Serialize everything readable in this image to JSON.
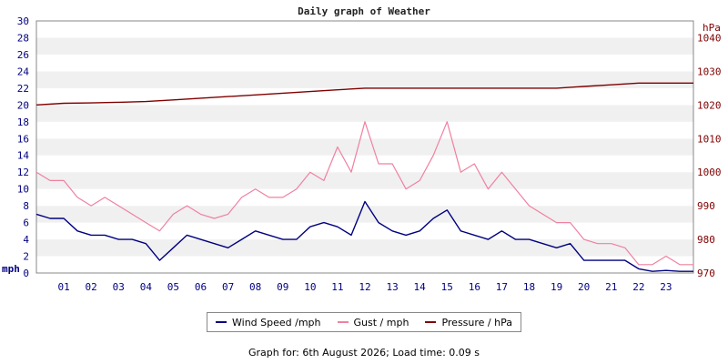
{
  "chart_data": {
    "type": "line",
    "title": "Daily graph of Weather",
    "y_left_unit": "mph",
    "y_right_unit": "hPa",
    "y_left_ticks": [
      0,
      2,
      4,
      6,
      8,
      10,
      12,
      14,
      16,
      18,
      20,
      22,
      24,
      26,
      28,
      30
    ],
    "y_right_ticks": [
      970,
      980,
      990,
      1000,
      1010,
      1020,
      1030,
      1040
    ],
    "ylim_left": [
      0,
      30
    ],
    "ylim_right": [
      970,
      1045
    ],
    "x_ticks": [
      "01",
      "02",
      "03",
      "04",
      "05",
      "06",
      "07",
      "08",
      "09",
      "10",
      "11",
      "12",
      "13",
      "14",
      "15",
      "16",
      "17",
      "18",
      "19",
      "20",
      "21",
      "22",
      "23"
    ],
    "xlim_hours": [
      0,
      24
    ],
    "grid": "horizontal alternating bands",
    "legend_position": "bottom",
    "series": [
      {
        "name": "Wind Speed /mph",
        "color": "#000080",
        "axis": "left",
        "x": [
          0,
          0.5,
          1,
          1.5,
          2,
          2.5,
          3,
          3.5,
          4,
          4.5,
          5,
          5.5,
          6,
          6.5,
          7,
          7.5,
          8,
          8.5,
          9,
          9.5,
          10,
          10.5,
          11,
          11.5,
          12,
          12.5,
          13,
          13.5,
          14,
          14.5,
          15,
          15.5,
          16,
          16.5,
          17,
          17.5,
          18,
          18.5,
          19,
          19.5,
          20,
          20.5,
          21,
          21.5,
          22,
          22.5,
          23,
          23.5,
          24
        ],
        "values": [
          7,
          6.5,
          6.5,
          5,
          4.5,
          4.5,
          4,
          4,
          3.5,
          1.5,
          3,
          4.5,
          4,
          3.5,
          3,
          4,
          5,
          4.5,
          4,
          4,
          5.5,
          6,
          5.5,
          4.5,
          8.5,
          6,
          5,
          4.5,
          5,
          6.5,
          7.5,
          5,
          4.5,
          4,
          5,
          4,
          4,
          3.5,
          3,
          3.5,
          1.5,
          1.5,
          1.5,
          1.5,
          0.5,
          0.2,
          0.3,
          0.2,
          0.2
        ]
      },
      {
        "name": "Gust / mph",
        "color": "#f080a0",
        "axis": "left",
        "x": [
          0,
          0.5,
          1,
          1.5,
          2,
          2.5,
          3,
          3.5,
          4,
          4.5,
          5,
          5.5,
          6,
          6.5,
          7,
          7.5,
          8,
          8.5,
          9,
          9.5,
          10,
          10.5,
          11,
          11.5,
          12,
          12.5,
          13,
          13.5,
          14,
          14.5,
          15,
          15.5,
          16,
          16.5,
          17,
          17.5,
          18,
          18.5,
          19,
          19.5,
          20,
          20.5,
          21,
          21.5,
          22,
          22.5,
          23,
          23.5,
          24
        ],
        "values": [
          12,
          11,
          11,
          9,
          8,
          9,
          8,
          7,
          6,
          5,
          7,
          8,
          7,
          6.5,
          7,
          9,
          10,
          9,
          9,
          10,
          12,
          11,
          15,
          12,
          18,
          13,
          13,
          10,
          11,
          14,
          18,
          12,
          13,
          10,
          12,
          10,
          8,
          7,
          6,
          6,
          4,
          3.5,
          3.5,
          3,
          1,
          1,
          2,
          1,
          1
        ]
      },
      {
        "name": "Pressure / hPa",
        "color": "#800000",
        "axis": "right",
        "x": [
          0,
          1,
          2,
          3,
          4,
          5,
          6,
          7,
          8,
          9,
          10,
          11,
          12,
          13,
          14,
          15,
          16,
          17,
          18,
          19,
          20,
          21,
          22,
          23,
          24
        ],
        "values": [
          1020,
          1020.5,
          1020.6,
          1020.8,
          1021,
          1021.5,
          1022,
          1022.5,
          1023,
          1023.5,
          1024,
          1024.5,
          1025,
          1025,
          1025,
          1025,
          1025,
          1025,
          1025,
          1025,
          1025.5,
          1026,
          1026.5,
          1026.5,
          1026.5
        ]
      }
    ]
  },
  "footer": "Graph for: 6th August 2026; Load time: 0.09 s"
}
